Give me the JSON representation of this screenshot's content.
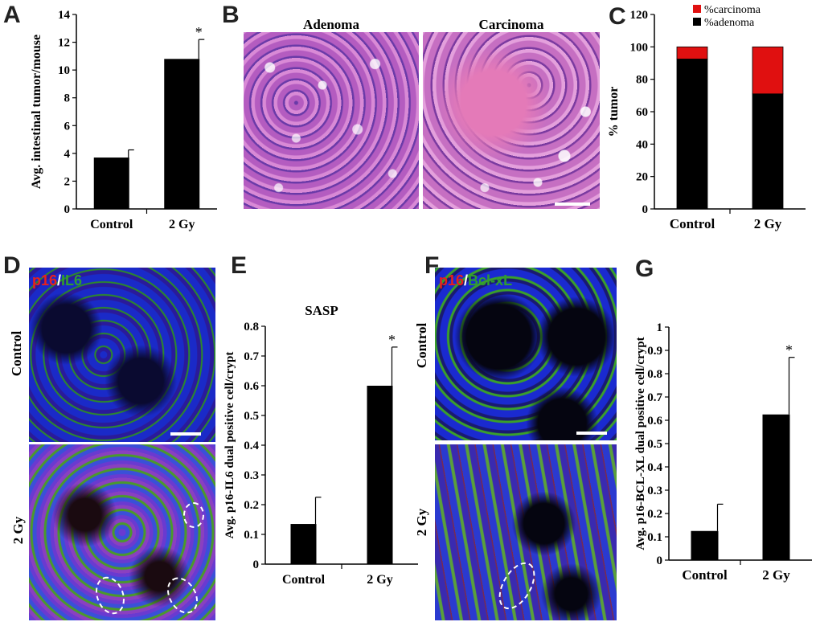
{
  "panels": {
    "A": "A",
    "B": "B",
    "C": "C",
    "D": "D",
    "E": "E",
    "F": "F",
    "G": "G"
  },
  "histology": {
    "left_title": "Adenoma",
    "right_title": "Carcinoma"
  },
  "panel_d": {
    "stain_red": "p16",
    "sep": "/",
    "stain_green": "IL6",
    "top_label": "Control",
    "bottom_label": "2 Gy"
  },
  "panel_f": {
    "stain_red": "p16",
    "sep": "/",
    "stain_green": "Bcl-xL",
    "top_label": "Control",
    "bottom_label": "2 Gy"
  },
  "colors": {
    "bar": "#000000",
    "carcinoma": "#e01010",
    "stain_red": "#e8201c",
    "stain_green": "#2f9e2f",
    "he_pink": "#c04fb0"
  },
  "chart_data": [
    {
      "id": "A",
      "type": "bar",
      "categories": [
        "Control",
        "2 Gy"
      ],
      "values": [
        3.7,
        10.8
      ],
      "errors": [
        0.55,
        1.4
      ],
      "significance": [
        "",
        "*"
      ],
      "ylabel": "Avg. intestinal tumor/mouse",
      "ylim": [
        0,
        14
      ],
      "yticks": [
        "0",
        "2",
        "4",
        "6",
        "8",
        "10",
        "12",
        "14"
      ],
      "title": ""
    },
    {
      "id": "C",
      "type": "bar",
      "stacked": true,
      "categories": [
        "Control",
        "2 Gy"
      ],
      "series": [
        {
          "name": "%adenoma",
          "values": [
            92.5,
            71
          ],
          "color": "#000000"
        },
        {
          "name": "%carcinoma",
          "values": [
            7.5,
            29
          ],
          "color": "#e01010"
        }
      ],
      "ylabel": "% tumor",
      "ylim": [
        0,
        120
      ],
      "yticks": [
        "0",
        "20",
        "40",
        "60",
        "80",
        "100",
        "120"
      ],
      "legend": "top-right",
      "title": ""
    },
    {
      "id": "E",
      "type": "bar",
      "title": "SASP",
      "categories": [
        "Control",
        "2 Gy"
      ],
      "values": [
        0.135,
        0.6
      ],
      "errors": [
        0.09,
        0.13
      ],
      "significance": [
        "",
        "*"
      ],
      "ylabel": "Avg. p16-IL6 dual positive cell/crypt",
      "ylim": [
        0,
        0.8
      ],
      "yticks": [
        "0",
        "0.1",
        "0.2",
        "0.3",
        "0.4",
        "0.5",
        "0.6",
        "0.7",
        "0.8"
      ]
    },
    {
      "id": "G",
      "type": "bar",
      "categories": [
        "Control",
        "2 Gy"
      ],
      "values": [
        0.125,
        0.625
      ],
      "errors": [
        0.115,
        0.245
      ],
      "significance": [
        "",
        "*"
      ],
      "ylabel": "Avg. p16-BCL-XL dual positive cell/crypt",
      "ylim": [
        0,
        1
      ],
      "yticks": [
        "0",
        "0.1",
        "0.2",
        "0.3",
        "0.4",
        "0.5",
        "0.6",
        "0.7",
        "0.8",
        "0.9",
        "1"
      ],
      "title": ""
    }
  ]
}
